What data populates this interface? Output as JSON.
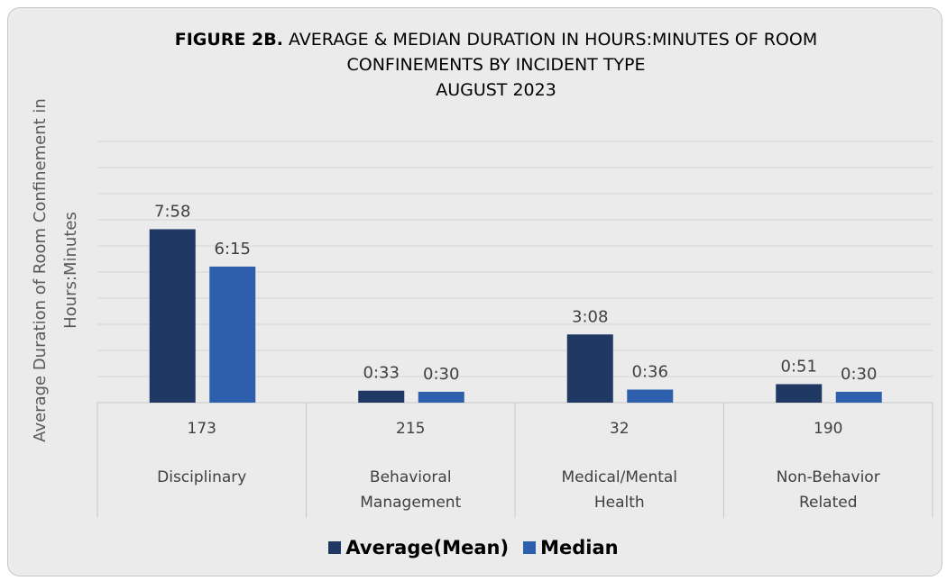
{
  "chart_data": {
    "type": "bar",
    "title_label": "FIGURE 2B.",
    "title": "AVERAGE & MEDIAN DURATION IN HOURS:MINUTES OF ROOM CONFINEMENTS BY INCIDENT TYPE",
    "subtitle": "AUGUST 2023",
    "y_label": "Average Duration of Room Confinement in Hours:Minutes",
    "categories": [
      "Disciplinary",
      "Behavioral Management",
      "Medical/Mental Health",
      "Non-Behavior Related"
    ],
    "counts": [
      173,
      215,
      32,
      190
    ],
    "series": [
      {
        "name": "Average(Mean)",
        "color": "#203864",
        "values": [
          478,
          33,
          188,
          51
        ],
        "value_labels": [
          "7:58",
          "0:33",
          "3:08",
          "0:51"
        ]
      },
      {
        "name": "Median",
        "color": "#2e5fac",
        "values": [
          375,
          30,
          36,
          30
        ],
        "value_labels": [
          "6:15",
          "0:30",
          "0:36",
          "0:30"
        ]
      }
    ],
    "ylim": [
      0,
      720
    ],
    "yticks": [
      0,
      72,
      144,
      216,
      288,
      360,
      432,
      504,
      576,
      648,
      720
    ],
    "grid": true,
    "legend": "bottom"
  }
}
